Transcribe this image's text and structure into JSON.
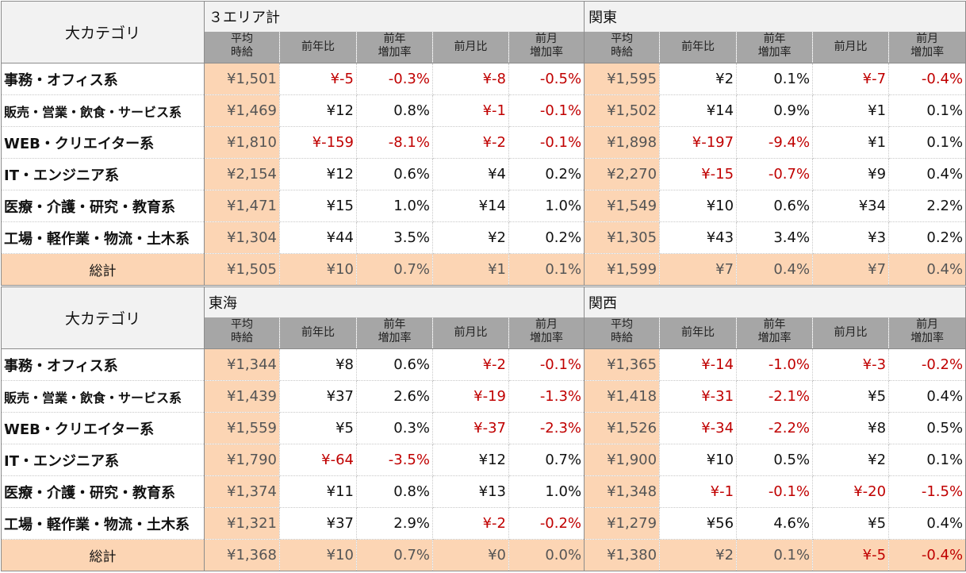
{
  "category_header": "大カテゴリ",
  "subheaders": [
    {
      "l1": "平均",
      "l2": "時給",
      "two": true
    },
    {
      "l1": "前年比",
      "l2": "",
      "two": false
    },
    {
      "l1": "前年",
      "l2": "増加率",
      "two": true
    },
    {
      "l1": "前月比",
      "l2": "",
      "two": false
    },
    {
      "l1": "前月",
      "l2": "増加率",
      "two": true
    }
  ],
  "tables": [
    {
      "regions": [
        "３エリア計",
        "関東"
      ],
      "rows": [
        {
          "category": "事務・オフィス系",
          "small": false,
          "values": [
            "¥1,501",
            "¥-5",
            "-0.3%",
            "¥-8",
            "-0.5%",
            "¥1,595",
            "¥2",
            "0.1%",
            "¥-7",
            "-0.4%"
          ]
        },
        {
          "category": "販売・営業・飲食・サービス系",
          "small": true,
          "values": [
            "¥1,469",
            "¥12",
            "0.8%",
            "¥-1",
            "-0.1%",
            "¥1,502",
            "¥14",
            "0.9%",
            "¥1",
            "0.1%"
          ]
        },
        {
          "category": "WEB・クリエイター系",
          "small": false,
          "values": [
            "¥1,810",
            "¥-159",
            "-8.1%",
            "¥-2",
            "-0.1%",
            "¥1,898",
            "¥-197",
            "-9.4%",
            "¥1",
            "0.1%"
          ]
        },
        {
          "category": "IT・エンジニア系",
          "small": false,
          "values": [
            "¥2,154",
            "¥12",
            "0.6%",
            "¥4",
            "0.2%",
            "¥2,270",
            "¥-15",
            "-0.7%",
            "¥9",
            "0.4%"
          ]
        },
        {
          "category": "医療・介護・研究・教育系",
          "small": false,
          "values": [
            "¥1,471",
            "¥15",
            "1.0%",
            "¥14",
            "1.0%",
            "¥1,549",
            "¥10",
            "0.6%",
            "¥34",
            "2.2%"
          ]
        },
        {
          "category": "工場・軽作業・物流・土木系",
          "small": false,
          "values": [
            "¥1,304",
            "¥44",
            "3.5%",
            "¥2",
            "0.2%",
            "¥1,305",
            "¥43",
            "3.4%",
            "¥3",
            "0.2%"
          ]
        }
      ],
      "total": {
        "category": "総計",
        "values": [
          "¥1,505",
          "¥10",
          "0.7%",
          "¥1",
          "0.1%",
          "¥1,599",
          "¥7",
          "0.4%",
          "¥7",
          "0.4%"
        ]
      }
    },
    {
      "regions": [
        "東海",
        "関西"
      ],
      "rows": [
        {
          "category": "事務・オフィス系",
          "small": false,
          "values": [
            "¥1,344",
            "¥8",
            "0.6%",
            "¥-2",
            "-0.1%",
            "¥1,365",
            "¥-14",
            "-1.0%",
            "¥-3",
            "-0.2%"
          ]
        },
        {
          "category": "販売・営業・飲食・サービス系",
          "small": true,
          "values": [
            "¥1,439",
            "¥37",
            "2.6%",
            "¥-19",
            "-1.3%",
            "¥1,418",
            "¥-31",
            "-2.1%",
            "¥5",
            "0.4%"
          ]
        },
        {
          "category": "WEB・クリエイター系",
          "small": false,
          "values": [
            "¥1,559",
            "¥5",
            "0.3%",
            "¥-37",
            "-2.3%",
            "¥1,526",
            "¥-34",
            "-2.2%",
            "¥8",
            "0.5%"
          ]
        },
        {
          "category": "IT・エンジニア系",
          "small": false,
          "values": [
            "¥1,790",
            "¥-64",
            "-3.5%",
            "¥12",
            "0.7%",
            "¥1,900",
            "¥10",
            "0.5%",
            "¥2",
            "0.1%"
          ]
        },
        {
          "category": "医療・介護・研究・教育系",
          "small": false,
          "values": [
            "¥1,374",
            "¥11",
            "0.8%",
            "¥13",
            "1.0%",
            "¥1,348",
            "¥-1",
            "-0.1%",
            "¥-20",
            "-1.5%"
          ]
        },
        {
          "category": "工場・軽作業・物流・土木系",
          "small": false,
          "values": [
            "¥1,321",
            "¥37",
            "2.9%",
            "¥-2",
            "-0.2%",
            "¥1,279",
            "¥56",
            "4.6%",
            "¥5",
            "0.4%"
          ]
        }
      ],
      "total": {
        "category": "総計",
        "values": [
          "¥1,368",
          "¥10",
          "0.7%",
          "¥0",
          "0.0%",
          "¥1,380",
          "¥2",
          "0.1%",
          "¥-5",
          "-0.4%"
        ]
      }
    }
  ]
}
